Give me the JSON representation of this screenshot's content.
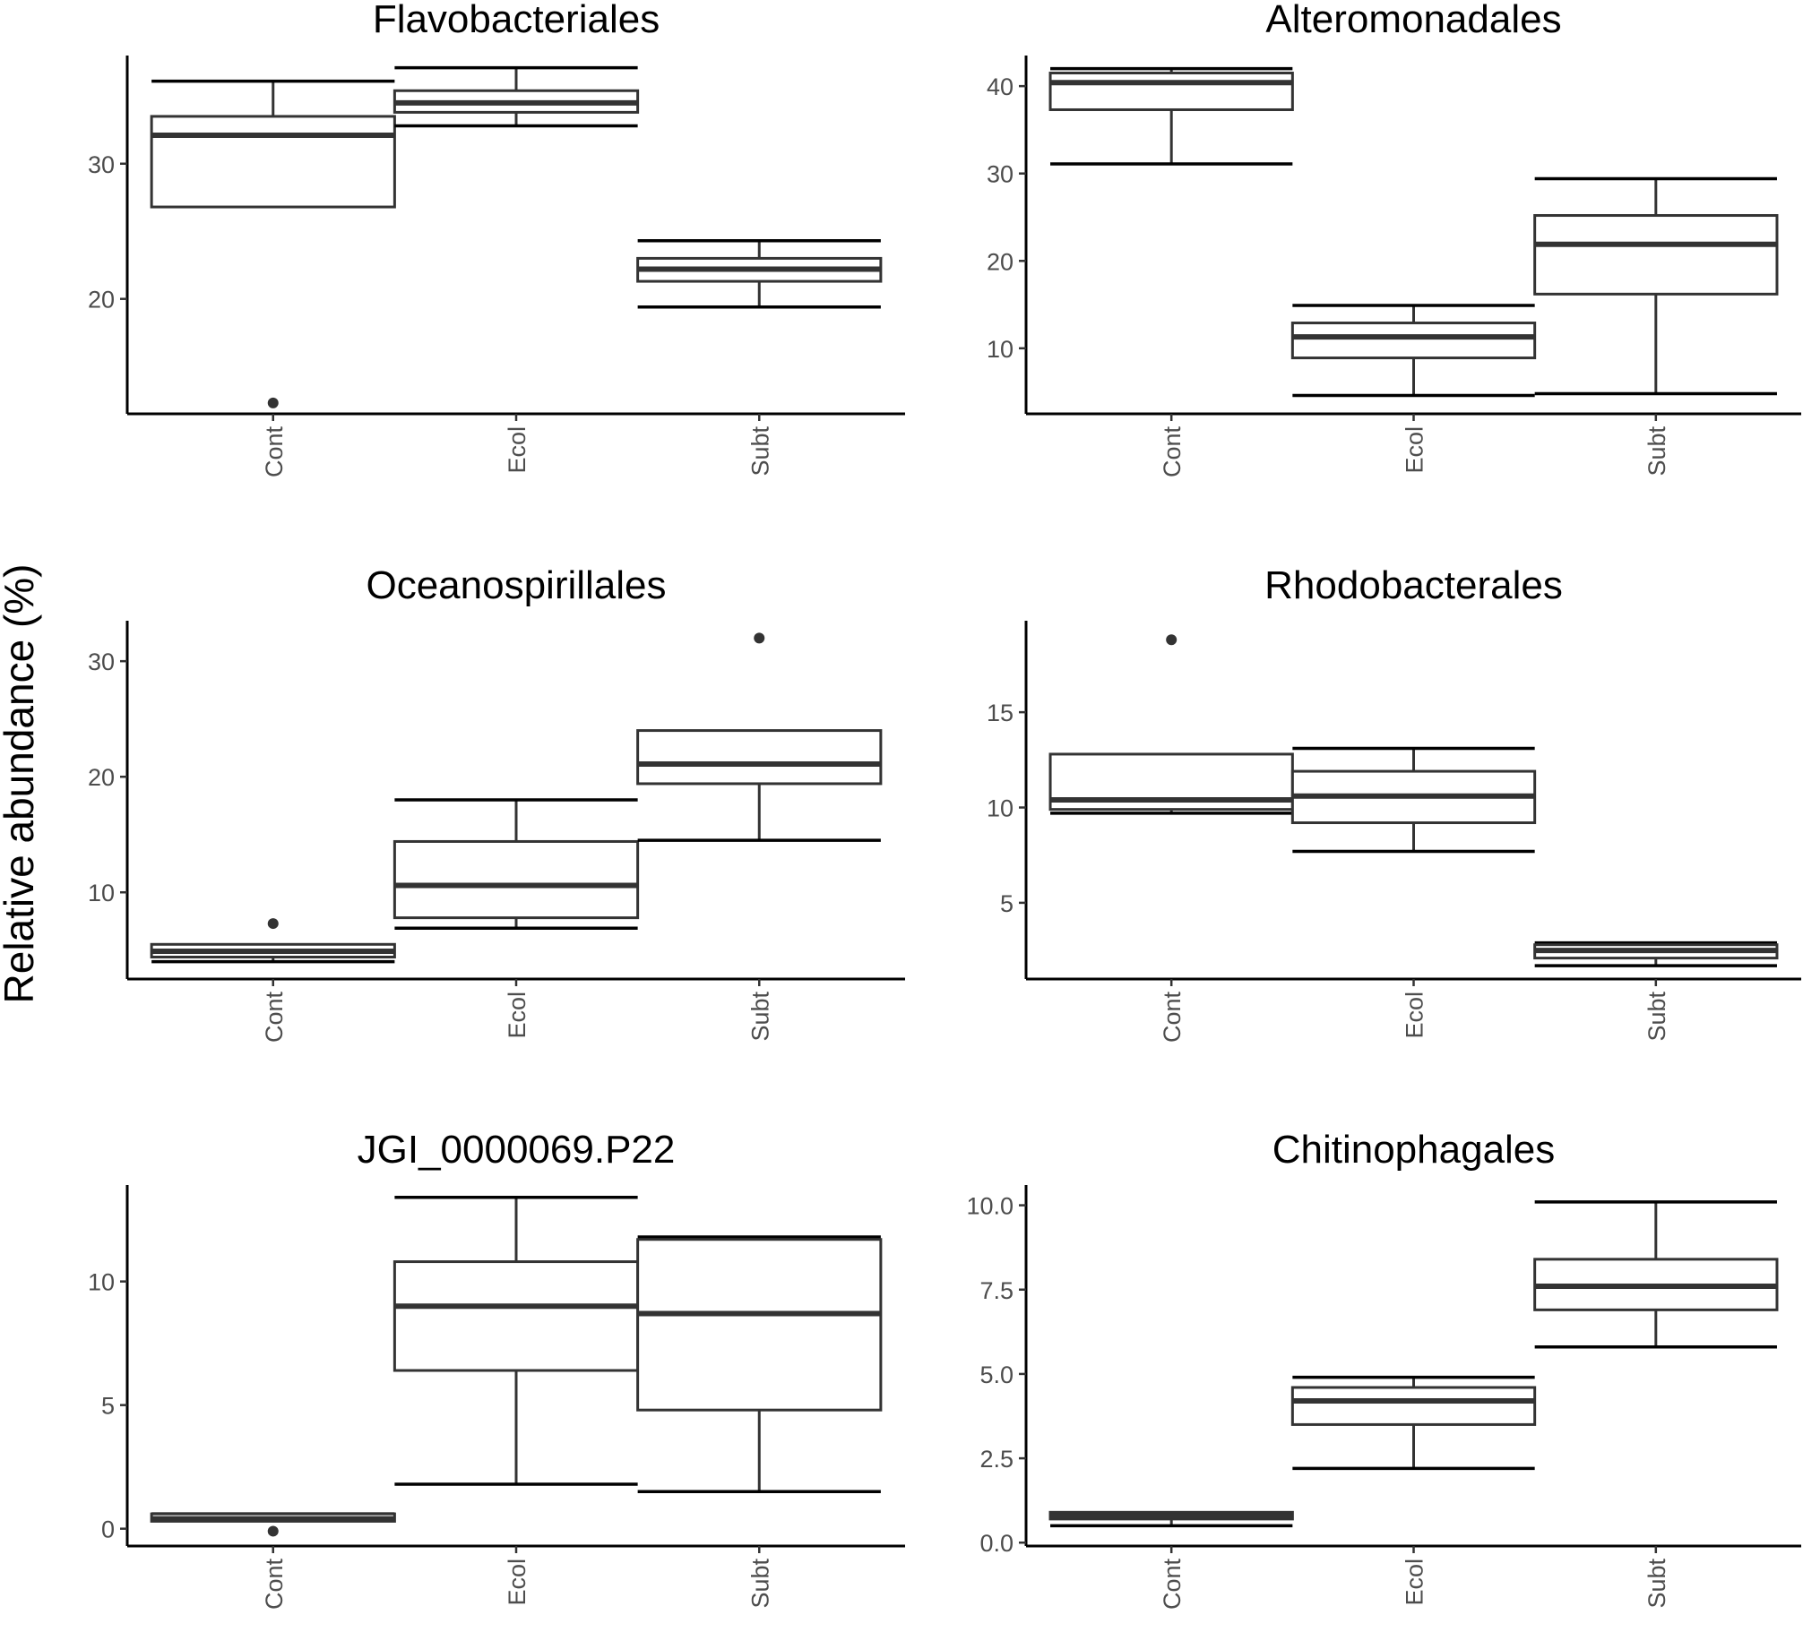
{
  "figure": {
    "ylabel": "Relative abundance (%)"
  },
  "chart_data": [
    {
      "type": "box",
      "title": "Flavobacteriales",
      "categories": [
        "Cont",
        "Ecol",
        "Subt"
      ],
      "ylim": [
        11.5,
        38.0
      ],
      "yticks": [
        20,
        30
      ],
      "boxes": [
        {
          "category": "Cont",
          "whisker_low": 26.8,
          "q1": 26.8,
          "median": 32.1,
          "q3": 33.5,
          "whisker_high": 36.1,
          "caps": [
            36.1
          ],
          "outliers": [
            12.3
          ]
        },
        {
          "category": "Ecol",
          "whisker_low": 32.8,
          "q1": 33.8,
          "median": 34.5,
          "q3": 35.4,
          "whisker_high": 37.1,
          "caps": [
            32.8,
            37.1
          ],
          "outliers": []
        },
        {
          "category": "Subt",
          "whisker_low": 19.4,
          "q1": 21.3,
          "median": 22.2,
          "q3": 23.0,
          "whisker_high": 24.3,
          "caps": [
            19.4,
            24.3
          ],
          "outliers": []
        }
      ]
    },
    {
      "type": "box",
      "title": "Alteromonadales",
      "categories": [
        "Cont",
        "Ecol",
        "Subt"
      ],
      "ylim": [
        2.5,
        43.5
      ],
      "yticks": [
        10,
        20,
        30,
        40
      ],
      "boxes": [
        {
          "category": "Cont",
          "whisker_low": 31.1,
          "q1": 37.3,
          "median": 40.4,
          "q3": 41.5,
          "whisker_high": 42.0,
          "caps": [
            31.1,
            42.0
          ],
          "outliers": []
        },
        {
          "category": "Ecol",
          "whisker_low": 4.6,
          "q1": 8.9,
          "median": 11.3,
          "q3": 12.9,
          "whisker_high": 14.9,
          "caps": [
            4.6,
            14.9
          ],
          "outliers": []
        },
        {
          "category": "Subt",
          "whisker_low": 4.8,
          "q1": 16.2,
          "median": 21.9,
          "q3": 25.2,
          "whisker_high": 29.4,
          "caps": [
            4.8,
            29.4
          ],
          "outliers": []
        }
      ]
    },
    {
      "type": "box",
      "title": "Oceanospirillales",
      "categories": [
        "Cont",
        "Ecol",
        "Subt"
      ],
      "ylim": [
        2.5,
        33.5
      ],
      "yticks": [
        10,
        20,
        30
      ],
      "boxes": [
        {
          "category": "Cont",
          "whisker_low": 4.0,
          "q1": 4.4,
          "median": 4.9,
          "q3": 5.5,
          "whisker_high": 5.5,
          "caps": [
            4.0
          ],
          "outliers": [
            7.3
          ]
        },
        {
          "category": "Ecol",
          "whisker_low": 6.9,
          "q1": 7.8,
          "median": 10.6,
          "q3": 14.4,
          "whisker_high": 18.0,
          "caps": [
            6.9,
            18.0
          ],
          "outliers": []
        },
        {
          "category": "Subt",
          "whisker_low": 14.5,
          "q1": 19.4,
          "median": 21.1,
          "q3": 24.0,
          "whisker_high": 24.0,
          "caps": [
            14.5
          ],
          "outliers": [
            32.0
          ]
        }
      ]
    },
    {
      "type": "box",
      "title": "Rhodobacterales",
      "categories": [
        "Cont",
        "Ecol",
        "Subt"
      ],
      "ylim": [
        1.0,
        19.8
      ],
      "yticks": [
        5,
        10,
        15
      ],
      "boxes": [
        {
          "category": "Cont",
          "whisker_low": 9.7,
          "q1": 9.9,
          "median": 10.4,
          "q3": 12.8,
          "whisker_high": 12.8,
          "caps": [
            9.7
          ],
          "outliers": [
            18.8
          ]
        },
        {
          "category": "Ecol",
          "whisker_low": 7.7,
          "q1": 9.2,
          "median": 10.6,
          "q3": 11.9,
          "whisker_high": 13.1,
          "caps": [
            7.7,
            13.1
          ],
          "outliers": []
        },
        {
          "category": "Subt",
          "whisker_low": 1.7,
          "q1": 2.1,
          "median": 2.5,
          "q3": 2.8,
          "whisker_high": 2.9,
          "caps": [
            1.7,
            2.9
          ],
          "outliers": []
        }
      ]
    },
    {
      "type": "box",
      "title": "JGI_0000069.P22",
      "categories": [
        "Cont",
        "Ecol",
        "Subt"
      ],
      "ylim": [
        -0.7,
        13.9
      ],
      "yticks": [
        0,
        5,
        10
      ],
      "boxes": [
        {
          "category": "Cont",
          "whisker_low": 0.3,
          "q1": 0.3,
          "median": 0.4,
          "q3": 0.6,
          "whisker_high": 0.6,
          "caps": [
            0.6
          ],
          "outliers": [
            -0.1
          ]
        },
        {
          "category": "Ecol",
          "whisker_low": 1.8,
          "q1": 6.4,
          "median": 9.0,
          "q3": 10.8,
          "whisker_high": 13.4,
          "caps": [
            1.8,
            13.4
          ],
          "outliers": []
        },
        {
          "category": "Subt",
          "whisker_low": 1.5,
          "q1": 4.8,
          "median": 8.7,
          "q3": 11.7,
          "whisker_high": 11.8,
          "caps": [
            1.5,
            11.8
          ],
          "outliers": []
        }
      ]
    },
    {
      "type": "box",
      "title": "Chitinophagales",
      "categories": [
        "Cont",
        "Ecol",
        "Subt"
      ],
      "ylim": [
        -0.1,
        10.6
      ],
      "yticks": [
        "0.0",
        "2.5",
        "5.0",
        "7.5",
        "10.0"
      ],
      "boxes": [
        {
          "category": "Cont",
          "whisker_low": 0.5,
          "q1": 0.7,
          "median": 0.8,
          "q3": 0.9,
          "whisker_high": 0.9,
          "caps": [
            0.5
          ],
          "outliers": []
        },
        {
          "category": "Ecol",
          "whisker_low": 2.2,
          "q1": 3.5,
          "median": 4.2,
          "q3": 4.6,
          "whisker_high": 4.9,
          "caps": [
            2.2,
            4.9
          ],
          "outliers": []
        },
        {
          "category": "Subt",
          "whisker_low": 5.8,
          "q1": 6.9,
          "median": 7.6,
          "q3": 8.4,
          "whisker_high": 10.1,
          "caps": [
            5.8,
            10.1
          ],
          "outliers": []
        }
      ]
    }
  ]
}
